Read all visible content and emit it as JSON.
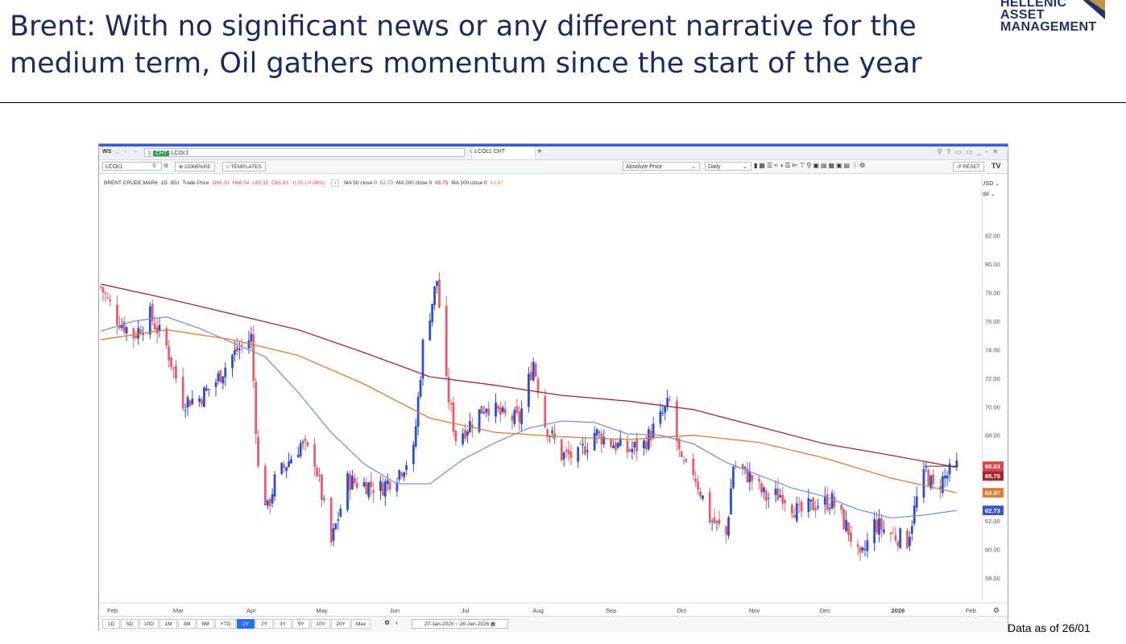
{
  "slide": {
    "title": "Brent: With no significant news or any different narrative for the medium term, Oil gathers momentum since the start of the year",
    "logo_lines": [
      "HELLENIC",
      "ASSET",
      "MANAGEMENT"
    ],
    "footnote": "Data as of 26/01"
  },
  "window": {
    "workspace": "WS",
    "cht_badge": "CHT",
    "ric_field": "LCOc1",
    "tab_label": "LCOc1 CHT",
    "add_tab": "+",
    "symbol_box": "LCOc1",
    "compare_label": "COMPARE",
    "templates_label": "TEMPLATES",
    "price_type": "Absolute Price",
    "interval": "Daily",
    "reset_label": "RESET",
    "currency": "USD",
    "unit": "bbl",
    "date_range": "27-Jan-2025 ~ 26-Jan-2026",
    "ranges": [
      "1D",
      "5D",
      "10D",
      "1M",
      "3M",
      "6M",
      "YTD",
      "1Y",
      "2Y",
      "3Y",
      "5Y",
      "10Y",
      "20Y",
      "Max"
    ],
    "active_range": "1Y"
  },
  "legend": {
    "instrument": "BRENT CRUDE MAR6",
    "interval": "1D",
    "exchange": "IEU",
    "series_type": "Trade Price",
    "open": "O66.03",
    "high": "H66.54",
    "low": "L65.35",
    "close": "C65.83",
    "change": "-0.05 (-0.08%)",
    "ma50_label": "MA 50 close 0",
    "ma50_value": "62.73",
    "ma200_label": "MA 200 close 0",
    "ma200_value": "65.75",
    "ma100_label": "MA 100 close 0",
    "ma100_value": "63.97"
  },
  "colors": {
    "up": "#2d4fc9",
    "down": "#e0606b",
    "ma50": "#7c8ee0",
    "ma100": "#e07b35",
    "ma200": "#a3282e",
    "last_price": "#e0464f",
    "accent": "#2b6ff0"
  },
  "chart_data": {
    "type": "candlestick",
    "title": "BRENT CRUDE MAR6",
    "ylim": [
      57,
      84
    ],
    "y_ticks": [
      "82.00",
      "80.00",
      "78.00",
      "76.00",
      "74.00",
      "72.00",
      "70.00",
      "68.00",
      "66.00",
      "64.00",
      "62.00",
      "60.00",
      "58.00"
    ],
    "y_tick_values": [
      82,
      80,
      78,
      76,
      74,
      72,
      70,
      68,
      66,
      64,
      62,
      60,
      58
    ],
    "x_range": [
      "2025-01-27",
      "2026-02-05"
    ],
    "x_ticks": [
      {
        "label": "Feb",
        "date": "2025-02-01"
      },
      {
        "label": "Mar",
        "date": "2025-03-01"
      },
      {
        "label": "Apr",
        "date": "2025-04-01"
      },
      {
        "label": "May",
        "date": "2025-05-01"
      },
      {
        "label": "Jun",
        "date": "2025-06-01"
      },
      {
        "label": "Jul",
        "date": "2025-07-01"
      },
      {
        "label": "Aug",
        "date": "2025-08-01"
      },
      {
        "label": "Sep",
        "date": "2025-09-01"
      },
      {
        "label": "Oct",
        "date": "2025-10-01"
      },
      {
        "label": "Nov",
        "date": "2025-11-01"
      },
      {
        "label": "Dec",
        "date": "2025-12-01"
      },
      {
        "label": "2026",
        "date": "2026-01-01"
      },
      {
        "label": "Feb",
        "date": "2026-02-01"
      }
    ],
    "close_path": [
      [
        "2025-01-27",
        78.4
      ],
      [
        "2025-02-03",
        76.2
      ],
      [
        "2025-02-10",
        75.0
      ],
      [
        "2025-02-17",
        76.4
      ],
      [
        "2025-02-24",
        74.2
      ],
      [
        "2025-03-03",
        70.4
      ],
      [
        "2025-03-10",
        70.6
      ],
      [
        "2025-03-17",
        71.8
      ],
      [
        "2025-03-24",
        73.6
      ],
      [
        "2025-04-01",
        74.9
      ],
      [
        "2025-04-04",
        65.6
      ],
      [
        "2025-04-08",
        62.8
      ],
      [
        "2025-04-11",
        64.8
      ],
      [
        "2025-04-16",
        66.0
      ],
      [
        "2025-04-22",
        67.4
      ],
      [
        "2025-04-28",
        66.3
      ],
      [
        "2025-05-05",
        60.4
      ],
      [
        "2025-05-12",
        64.8
      ],
      [
        "2025-05-19",
        64.6
      ],
      [
        "2025-05-26",
        64.3
      ],
      [
        "2025-06-02",
        65.3
      ],
      [
        "2025-06-09",
        66.8
      ],
      [
        "2025-06-13",
        74.3
      ],
      [
        "2025-06-19",
        78.9
      ],
      [
        "2025-06-23",
        71.5
      ],
      [
        "2025-06-27",
        67.8
      ],
      [
        "2025-07-03",
        68.8
      ],
      [
        "2025-07-10",
        70.2
      ],
      [
        "2025-07-17",
        69.3
      ],
      [
        "2025-07-24",
        69.1
      ],
      [
        "2025-07-30",
        73.2
      ],
      [
        "2025-08-04",
        68.8
      ],
      [
        "2025-08-11",
        66.6
      ],
      [
        "2025-08-18",
        66.5
      ],
      [
        "2025-08-25",
        68.2
      ],
      [
        "2025-09-01",
        67.5
      ],
      [
        "2025-09-08",
        66.9
      ],
      [
        "2025-09-15",
        67.4
      ],
      [
        "2025-09-22",
        69.2
      ],
      [
        "2025-09-26",
        70.3
      ],
      [
        "2025-10-01",
        65.8
      ],
      [
        "2025-10-06",
        65.5
      ],
      [
        "2025-10-13",
        62.2
      ],
      [
        "2025-10-20",
        61.0
      ],
      [
        "2025-10-23",
        65.9
      ],
      [
        "2025-10-30",
        65.1
      ],
      [
        "2025-11-06",
        63.6
      ],
      [
        "2025-11-13",
        63.9
      ],
      [
        "2025-11-20",
        62.5
      ],
      [
        "2025-11-27",
        63.2
      ],
      [
        "2025-12-04",
        63.4
      ],
      [
        "2025-12-11",
        61.3
      ],
      [
        "2025-12-16",
        59.1
      ],
      [
        "2025-12-22",
        61.8
      ],
      [
        "2025-12-29",
        61.1
      ],
      [
        "2026-01-05",
        60.6
      ],
      [
        "2026-01-09",
        63.5
      ],
      [
        "2026-01-13",
        65.5
      ],
      [
        "2026-01-16",
        64.2
      ],
      [
        "2026-01-20",
        64.9
      ],
      [
        "2026-01-26",
        65.83
      ]
    ],
    "series": [
      {
        "name": "MA 50 close 0",
        "last": 62.73,
        "points": [
          [
            "2025-01-27",
            75.3
          ],
          [
            "2025-02-10",
            76.0
          ],
          [
            "2025-02-24",
            76.3
          ],
          [
            "2025-03-10",
            75.5
          ],
          [
            "2025-03-24",
            74.5
          ],
          [
            "2025-04-07",
            73.5
          ],
          [
            "2025-04-21",
            71.0
          ],
          [
            "2025-05-05",
            68.2
          ],
          [
            "2025-05-19",
            66.0
          ],
          [
            "2025-06-02",
            64.6
          ],
          [
            "2025-06-16",
            64.6
          ],
          [
            "2025-06-30",
            66.3
          ],
          [
            "2025-07-14",
            67.5
          ],
          [
            "2025-07-28",
            68.5
          ],
          [
            "2025-08-11",
            69.0
          ],
          [
            "2025-08-25",
            68.9
          ],
          [
            "2025-09-08",
            68.1
          ],
          [
            "2025-09-22",
            68.0
          ],
          [
            "2025-10-06",
            67.4
          ],
          [
            "2025-10-20",
            66.1
          ],
          [
            "2025-11-03",
            65.2
          ],
          [
            "2025-11-17",
            64.3
          ],
          [
            "2025-12-01",
            63.7
          ],
          [
            "2025-12-15",
            62.8
          ],
          [
            "2025-12-29",
            62.2
          ],
          [
            "2026-01-12",
            62.4
          ],
          [
            "2026-01-26",
            62.73
          ]
        ]
      },
      {
        "name": "MA 200 close 0",
        "last": 65.75,
        "points": [
          [
            "2025-01-27",
            78.6
          ],
          [
            "2025-02-24",
            77.6
          ],
          [
            "2025-03-24",
            76.5
          ],
          [
            "2025-04-21",
            75.4
          ],
          [
            "2025-05-19",
            73.8
          ],
          [
            "2025-06-16",
            72.1
          ],
          [
            "2025-07-14",
            71.5
          ],
          [
            "2025-08-11",
            70.8
          ],
          [
            "2025-09-08",
            70.4
          ],
          [
            "2025-10-06",
            69.8
          ],
          [
            "2025-11-03",
            68.6
          ],
          [
            "2025-12-01",
            67.4
          ],
          [
            "2025-12-29",
            66.6
          ],
          [
            "2026-01-26",
            65.75
          ]
        ]
      },
      {
        "name": "MA 100 close 0",
        "last": 63.97,
        "points": [
          [
            "2025-01-27",
            74.7
          ],
          [
            "2025-02-24",
            75.4
          ],
          [
            "2025-03-24",
            74.7
          ],
          [
            "2025-04-21",
            73.6
          ],
          [
            "2025-05-19",
            71.6
          ],
          [
            "2025-06-16",
            69.2
          ],
          [
            "2025-07-14",
            68.2
          ],
          [
            "2025-08-11",
            67.9
          ],
          [
            "2025-09-08",
            67.7
          ],
          [
            "2025-10-06",
            68.0
          ],
          [
            "2025-11-03",
            67.5
          ],
          [
            "2025-12-01",
            66.4
          ],
          [
            "2025-12-29",
            65.0
          ],
          [
            "2026-01-26",
            63.97
          ]
        ]
      }
    ]
  }
}
